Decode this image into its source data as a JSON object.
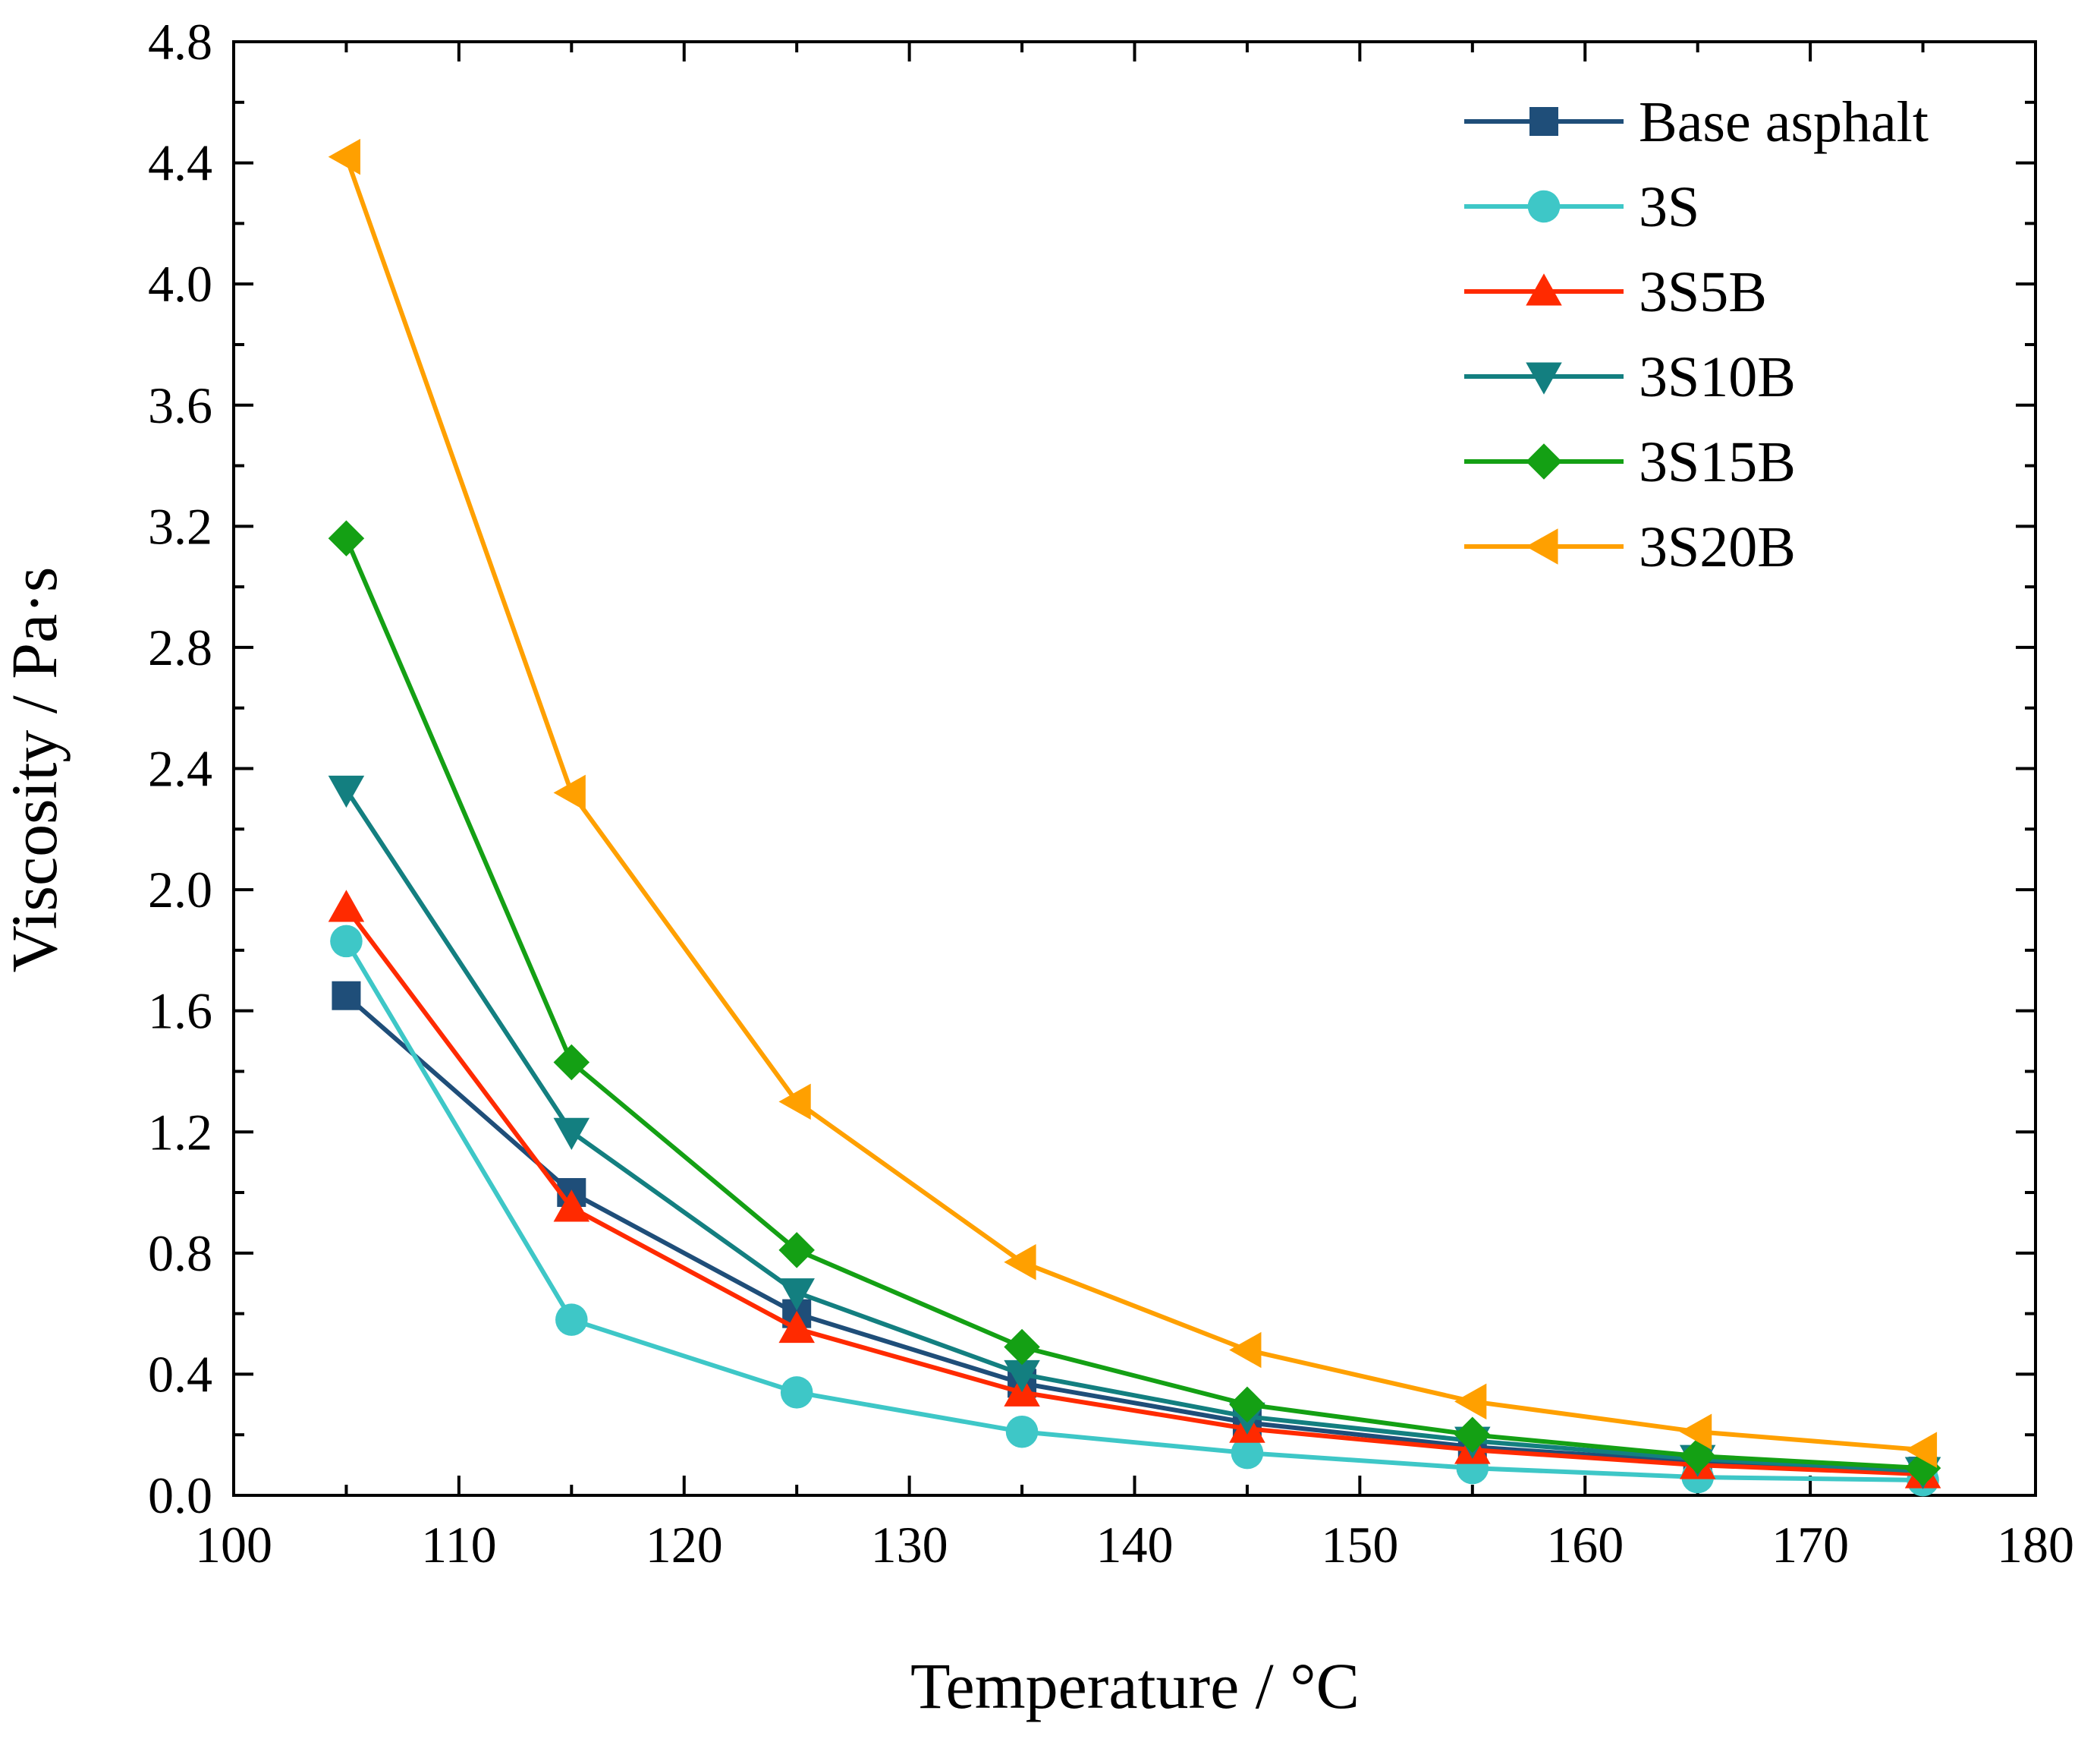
{
  "chart_data": {
    "type": "line",
    "title": "",
    "xlabel": "Temperature / °C",
    "ylabel": "Viscosity / Pa·s",
    "xlim": [
      100,
      180
    ],
    "ylim": [
      0,
      4.8
    ],
    "xticks": [
      100,
      110,
      120,
      130,
      140,
      150,
      160,
      170,
      180
    ],
    "yticks": [
      0.0,
      0.4,
      0.8,
      1.2,
      1.6,
      2.0,
      2.4,
      2.8,
      3.2,
      3.6,
      4.0,
      4.4,
      4.8
    ],
    "grid": false,
    "legend_position": "top-right",
    "x": [
      105,
      115,
      125,
      135,
      145,
      155,
      165,
      175
    ],
    "series": [
      {
        "name": "Base asphalt",
        "marker": "square",
        "color": "#1f4e79",
        "values": [
          1.65,
          1.0,
          0.6,
          0.37,
          0.24,
          0.16,
          0.11,
          0.08
        ]
      },
      {
        "name": "3S",
        "marker": "circle",
        "color": "#3ec7c7",
        "values": [
          1.83,
          0.58,
          0.34,
          0.21,
          0.14,
          0.09,
          0.06,
          0.05
        ]
      },
      {
        "name": "3S5B",
        "marker": "triangle-up",
        "color": "#ff2a00",
        "values": [
          1.94,
          0.95,
          0.55,
          0.34,
          0.22,
          0.15,
          0.1,
          0.07
        ]
      },
      {
        "name": "3S10B",
        "marker": "triangle-down",
        "color": "#137f80",
        "values": [
          2.33,
          1.2,
          0.67,
          0.4,
          0.26,
          0.18,
          0.12,
          0.08
        ]
      },
      {
        "name": "3S15B",
        "marker": "diamond",
        "color": "#14a014",
        "values": [
          3.16,
          1.43,
          0.81,
          0.49,
          0.3,
          0.2,
          0.13,
          0.09
        ]
      },
      {
        "name": "3S20B",
        "marker": "triangle-left",
        "color": "#ffa000",
        "values": [
          4.42,
          2.32,
          1.3,
          0.77,
          0.48,
          0.31,
          0.21,
          0.15
        ]
      }
    ]
  }
}
